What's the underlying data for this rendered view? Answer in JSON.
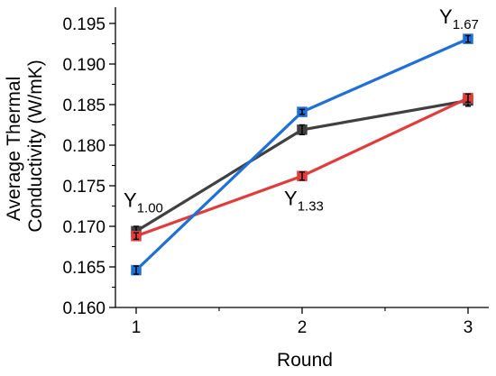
{
  "chart_data": {
    "type": "line",
    "title": "",
    "xlabel": "Round",
    "ylabel_lines": [
      "Average Thermal",
      "Conductivity (W/mK)"
    ],
    "x": [
      1,
      2,
      3
    ],
    "x_ticks": [
      "1",
      "2",
      "3"
    ],
    "xlim": [
      0.875,
      3.125
    ],
    "ylim": [
      0.16,
      0.197
    ],
    "y_ticks": [
      "0.160",
      "0.165",
      "0.170",
      "0.175",
      "0.180",
      "0.185",
      "0.190",
      "0.195"
    ],
    "y_tick_values": [
      0.16,
      0.165,
      0.17,
      0.175,
      0.18,
      0.185,
      0.19,
      0.195
    ],
    "grid": false,
    "legend": "none",
    "series": [
      {
        "color": "#404040",
        "values": [
          0.1694,
          0.1819,
          0.1855
        ],
        "errors": [
          0.0006,
          0.0006,
          0.0007
        ]
      },
      {
        "color": "#e03c3c",
        "values": [
          0.1688,
          0.1762,
          0.1858
        ],
        "errors": [
          0.0004,
          0.0005,
          0.0005
        ]
      },
      {
        "color": "#1f6fd6",
        "values": [
          0.1646,
          0.1841,
          0.1931
        ],
        "errors": [
          0.0005,
          0.0003,
          0.0004
        ]
      }
    ],
    "annotations": [
      {
        "base": "Y",
        "sub": "1.00",
        "x": 1,
        "y": 0.1724
      },
      {
        "base": "Y",
        "sub": "1.33",
        "x": 2,
        "y": 0.1726
      },
      {
        "base": "Y",
        "sub": "1.67",
        "x": 3,
        "y": 0.195
      }
    ]
  }
}
